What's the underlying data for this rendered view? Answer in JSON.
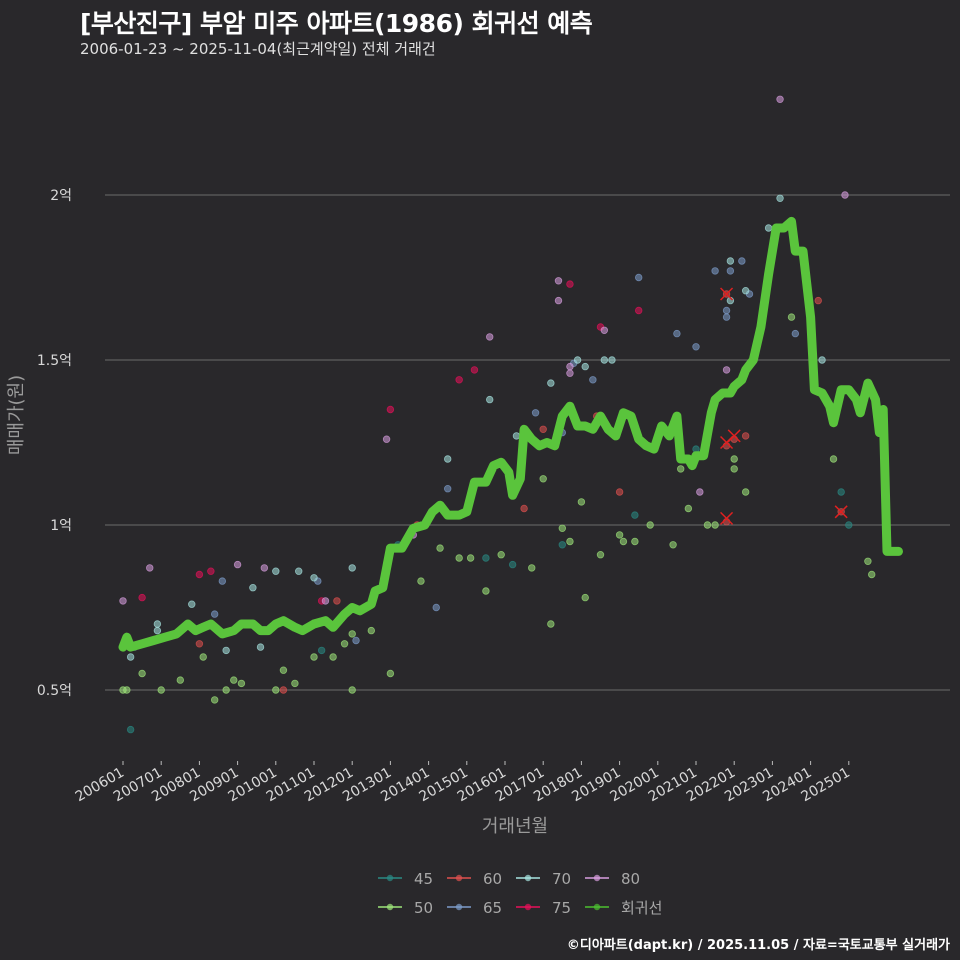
{
  "header": {
    "title": "[부산진구] 부암 미주 아파트(1986) 회귀선 예측",
    "subtitle": "2006-01-23 ~ 2025-11-04(최근계약일) 전체 거래건"
  },
  "footer": {
    "credit": "©디아파트(dapt.kr) / 2025.11.05 / 자료=국토교통부 실거래가"
  },
  "colors": {
    "background": "#29282b",
    "grid": "#6b6b6b",
    "regression": "#5ac43c",
    "outlier_x": "#e02020"
  },
  "chart_data": {
    "type": "scatter",
    "title": "[부산진구] 부암 미주 아파트(1986) 회귀선 예측",
    "subtitle": "2006-01-23 ~ 2025-11-04(최근계약일) 전체 거래건",
    "xlabel": "거래년월",
    "ylabel": "매매가(원)",
    "x_ticks": [
      "200601",
      "200701",
      "200801",
      "200901",
      "201001",
      "201101",
      "201201",
      "201301",
      "201401",
      "201501",
      "201601",
      "201701",
      "201801",
      "201901",
      "202001",
      "202101",
      "202201",
      "202301",
      "202401",
      "202501"
    ],
    "y_ticks": [
      {
        "value": 0.5,
        "label": "0.5억"
      },
      {
        "value": 1.0,
        "label": "1억"
      },
      {
        "value": 1.5,
        "label": "1.5억"
      },
      {
        "value": 2.0,
        "label": "2억"
      }
    ],
    "ylim": [
      0.27,
      2.55
    ],
    "y_unit": "억원",
    "grid": true,
    "legend_position": "bottom",
    "legend": [
      {
        "name": "45",
        "color": "#2a8a84"
      },
      {
        "name": "60",
        "color": "#e0504e"
      },
      {
        "name": "70",
        "color": "#a8e6e2"
      },
      {
        "name": "80",
        "color": "#d89ee0"
      },
      {
        "name": "50",
        "color": "#9ee67a"
      },
      {
        "name": "65",
        "color": "#7d9ccb"
      },
      {
        "name": "75",
        "color": "#e8105a"
      },
      {
        "name": "회귀선",
        "color": "#4cbf30"
      }
    ],
    "regression_line": {
      "name": "회귀선",
      "points": [
        [
          2006.0,
          0.63
        ],
        [
          2006.1,
          0.66
        ],
        [
          2006.2,
          0.63
        ],
        [
          2006.5,
          0.64
        ],
        [
          2006.8,
          0.65
        ],
        [
          2007.1,
          0.66
        ],
        [
          2007.4,
          0.67
        ],
        [
          2007.7,
          0.7
        ],
        [
          2007.9,
          0.68
        ],
        [
          2008.1,
          0.69
        ],
        [
          2008.3,
          0.7
        ],
        [
          2008.6,
          0.67
        ],
        [
          2008.9,
          0.68
        ],
        [
          2009.1,
          0.7
        ],
        [
          2009.4,
          0.7
        ],
        [
          2009.6,
          0.68
        ],
        [
          2009.8,
          0.68
        ],
        [
          2010.0,
          0.7
        ],
        [
          2010.2,
          0.71
        ],
        [
          2010.5,
          0.69
        ],
        [
          2010.7,
          0.68
        ],
        [
          2011.0,
          0.7
        ],
        [
          2011.3,
          0.71
        ],
        [
          2011.5,
          0.69
        ],
        [
          2011.8,
          0.73
        ],
        [
          2012.0,
          0.75
        ],
        [
          2012.2,
          0.74
        ],
        [
          2012.5,
          0.76
        ],
        [
          2012.6,
          0.8
        ],
        [
          2012.8,
          0.81
        ],
        [
          2013.0,
          0.93
        ],
        [
          2013.3,
          0.93
        ],
        [
          2013.6,
          0.99
        ],
        [
          2013.9,
          1.0
        ],
        [
          2014.1,
          1.04
        ],
        [
          2014.3,
          1.06
        ],
        [
          2014.5,
          1.03
        ],
        [
          2014.8,
          1.03
        ],
        [
          2015.0,
          1.04
        ],
        [
          2015.2,
          1.13
        ],
        [
          2015.5,
          1.13
        ],
        [
          2015.7,
          1.18
        ],
        [
          2015.9,
          1.19
        ],
        [
          2016.1,
          1.16
        ],
        [
          2016.2,
          1.09
        ],
        [
          2016.4,
          1.14
        ],
        [
          2016.5,
          1.29
        ],
        [
          2016.7,
          1.26
        ],
        [
          2016.9,
          1.24
        ],
        [
          2017.1,
          1.25
        ],
        [
          2017.3,
          1.24
        ],
        [
          2017.5,
          1.33
        ],
        [
          2017.7,
          1.36
        ],
        [
          2017.9,
          1.3
        ],
        [
          2018.1,
          1.3
        ],
        [
          2018.3,
          1.29
        ],
        [
          2018.5,
          1.33
        ],
        [
          2018.7,
          1.29
        ],
        [
          2018.9,
          1.27
        ],
        [
          2019.1,
          1.34
        ],
        [
          2019.3,
          1.33
        ],
        [
          2019.5,
          1.26
        ],
        [
          2019.7,
          1.24
        ],
        [
          2019.9,
          1.23
        ],
        [
          2020.1,
          1.3
        ],
        [
          2020.3,
          1.27
        ],
        [
          2020.5,
          1.33
        ],
        [
          2020.6,
          1.2
        ],
        [
          2020.8,
          1.2
        ],
        [
          2020.9,
          1.18
        ],
        [
          2021.0,
          1.21
        ],
        [
          2021.2,
          1.21
        ],
        [
          2021.4,
          1.34
        ],
        [
          2021.5,
          1.38
        ],
        [
          2021.7,
          1.4
        ],
        [
          2021.9,
          1.4
        ],
        [
          2022.0,
          1.42
        ],
        [
          2022.2,
          1.44
        ],
        [
          2022.3,
          1.47
        ],
        [
          2022.5,
          1.5
        ],
        [
          2022.7,
          1.6
        ],
        [
          2022.9,
          1.76
        ],
        [
          2023.1,
          1.9
        ],
        [
          2023.3,
          1.9
        ],
        [
          2023.5,
          1.92
        ],
        [
          2023.6,
          1.83
        ],
        [
          2023.8,
          1.83
        ],
        [
          2024.0,
          1.63
        ],
        [
          2024.1,
          1.41
        ],
        [
          2024.3,
          1.4
        ],
        [
          2024.5,
          1.36
        ],
        [
          2024.6,
          1.31
        ],
        [
          2024.8,
          1.41
        ],
        [
          2025.0,
          1.41
        ],
        [
          2025.2,
          1.38
        ],
        [
          2025.3,
          1.34
        ],
        [
          2025.5,
          1.43
        ],
        [
          2025.7,
          1.38
        ],
        [
          2025.8,
          1.28
        ],
        [
          2025.9,
          1.35
        ],
        [
          2026.0,
          0.92
        ],
        [
          2026.3,
          0.92
        ]
      ]
    },
    "series": [
      {
        "name": "45",
        "points": [
          [
            2006.2,
            0.38
          ],
          [
            2011.2,
            0.62
          ],
          [
            2013.2,
            0.94
          ],
          [
            2015.5,
            0.9
          ],
          [
            2016.2,
            0.88
          ],
          [
            2017.5,
            0.94
          ],
          [
            2019.4,
            1.03
          ],
          [
            2021.0,
            1.23
          ],
          [
            2024.8,
            1.1
          ],
          [
            2025.0,
            1.0
          ]
        ]
      },
      {
        "name": "50",
        "points": [
          [
            2006.0,
            0.5
          ],
          [
            2006.1,
            0.5
          ],
          [
            2006.5,
            0.55
          ],
          [
            2007.0,
            0.5
          ],
          [
            2007.5,
            0.53
          ],
          [
            2008.1,
            0.6
          ],
          [
            2008.4,
            0.47
          ],
          [
            2008.7,
            0.5
          ],
          [
            2008.9,
            0.53
          ],
          [
            2009.1,
            0.52
          ],
          [
            2010.0,
            0.5
          ],
          [
            2010.2,
            0.56
          ],
          [
            2010.5,
            0.52
          ],
          [
            2011.0,
            0.6
          ],
          [
            2011.5,
            0.6
          ],
          [
            2011.8,
            0.64
          ],
          [
            2012.0,
            0.67
          ],
          [
            2012.0,
            0.5
          ],
          [
            2012.5,
            0.68
          ],
          [
            2013.0,
            0.55
          ],
          [
            2013.8,
            0.83
          ],
          [
            2014.3,
            0.93
          ],
          [
            2014.8,
            0.9
          ],
          [
            2015.1,
            0.9
          ],
          [
            2015.5,
            0.8
          ],
          [
            2015.9,
            0.91
          ],
          [
            2016.7,
            0.87
          ],
          [
            2017.0,
            1.14
          ],
          [
            2017.2,
            0.7
          ],
          [
            2017.5,
            0.99
          ],
          [
            2017.7,
            0.95
          ],
          [
            2018.0,
            1.07
          ],
          [
            2018.1,
            0.78
          ],
          [
            2018.5,
            0.91
          ],
          [
            2019.0,
            0.97
          ],
          [
            2019.1,
            0.95
          ],
          [
            2019.4,
            0.95
          ],
          [
            2019.8,
            1.0
          ],
          [
            2020.4,
            0.94
          ],
          [
            2020.6,
            1.17
          ],
          [
            2020.8,
            1.05
          ],
          [
            2021.3,
            1.0
          ],
          [
            2021.5,
            1.0
          ],
          [
            2022.0,
            1.17
          ],
          [
            2022.0,
            1.2
          ],
          [
            2022.3,
            1.1
          ],
          [
            2023.5,
            1.63
          ],
          [
            2024.6,
            1.2
          ],
          [
            2025.5,
            0.89
          ],
          [
            2025.6,
            0.85
          ]
        ]
      },
      {
        "name": "60",
        "points": [
          [
            2008.0,
            0.64
          ],
          [
            2010.2,
            0.5
          ],
          [
            2011.6,
            0.77
          ],
          [
            2013.7,
            1.0
          ],
          [
            2016.5,
            1.05
          ],
          [
            2017.0,
            1.29
          ],
          [
            2018.4,
            1.33
          ],
          [
            2019.0,
            1.1
          ],
          [
            2021.8,
            1.01
          ],
          [
            2021.8,
            1.24
          ],
          [
            2022.0,
            1.26
          ],
          [
            2022.3,
            1.27
          ],
          [
            2021.8,
            1.7
          ],
          [
            2024.2,
            1.68
          ],
          [
            2024.8,
            1.04
          ]
        ]
      },
      {
        "name": "65",
        "points": [
          [
            2006.3,
            0.63
          ],
          [
            2008.4,
            0.73
          ],
          [
            2008.6,
            0.83
          ],
          [
            2011.1,
            0.83
          ],
          [
            2012.1,
            0.65
          ],
          [
            2014.2,
            0.75
          ],
          [
            2014.5,
            1.11
          ],
          [
            2016.8,
            1.34
          ],
          [
            2017.5,
            1.28
          ],
          [
            2017.8,
            1.49
          ],
          [
            2018.3,
            1.44
          ],
          [
            2019.5,
            1.75
          ],
          [
            2020.5,
            1.58
          ],
          [
            2021.0,
            1.54
          ],
          [
            2021.5,
            1.77
          ],
          [
            2021.8,
            1.65
          ],
          [
            2021.8,
            1.63
          ],
          [
            2021.9,
            1.77
          ],
          [
            2022.2,
            1.8
          ],
          [
            2022.4,
            1.7
          ],
          [
            2023.6,
            1.58
          ]
        ]
      },
      {
        "name": "70",
        "points": [
          [
            2006.2,
            0.6
          ],
          [
            2006.9,
            0.7
          ],
          [
            2006.9,
            0.68
          ],
          [
            2007.8,
            0.76
          ],
          [
            2008.7,
            0.62
          ],
          [
            2009.4,
            0.81
          ],
          [
            2009.6,
            0.63
          ],
          [
            2010.0,
            0.86
          ],
          [
            2010.6,
            0.86
          ],
          [
            2011.0,
            0.84
          ],
          [
            2012.0,
            0.87
          ],
          [
            2014.5,
            1.2
          ],
          [
            2015.6,
            1.38
          ],
          [
            2016.3,
            1.27
          ],
          [
            2017.2,
            1.43
          ],
          [
            2017.9,
            1.5
          ],
          [
            2018.1,
            1.48
          ],
          [
            2018.6,
            1.5
          ],
          [
            2018.8,
            1.5
          ],
          [
            2021.9,
            1.8
          ],
          [
            2021.9,
            1.68
          ],
          [
            2022.3,
            1.71
          ],
          [
            2022.9,
            1.9
          ],
          [
            2023.2,
            1.99
          ],
          [
            2024.3,
            1.5
          ]
        ]
      },
      {
        "name": "75",
        "points": [
          [
            2006.5,
            0.78
          ],
          [
            2008.0,
            0.85
          ],
          [
            2008.3,
            0.86
          ],
          [
            2011.2,
            0.77
          ],
          [
            2013.0,
            1.35
          ],
          [
            2014.8,
            1.44
          ],
          [
            2015.2,
            1.47
          ],
          [
            2017.7,
            1.73
          ],
          [
            2018.5,
            1.6
          ],
          [
            2019.5,
            1.65
          ]
        ]
      },
      {
        "name": "80",
        "points": [
          [
            2006.0,
            0.77
          ],
          [
            2006.7,
            0.87
          ],
          [
            2009.0,
            0.88
          ],
          [
            2009.7,
            0.87
          ],
          [
            2011.3,
            0.77
          ],
          [
            2012.9,
            1.26
          ],
          [
            2013.6,
            0.97
          ],
          [
            2015.6,
            1.57
          ],
          [
            2017.4,
            1.74
          ],
          [
            2017.4,
            1.68
          ],
          [
            2017.7,
            1.48
          ],
          [
            2017.7,
            1.46
          ],
          [
            2018.6,
            1.59
          ],
          [
            2021.1,
            1.1
          ],
          [
            2021.8,
            1.47
          ],
          [
            2023.2,
            2.29
          ],
          [
            2024.9,
            2.0
          ]
        ]
      }
    ],
    "outliers_marked_x": [
      [
        2021.8,
        1.7
      ],
      [
        2021.8,
        1.25
      ],
      [
        2022.0,
        1.27
      ],
      [
        2021.8,
        1.02
      ],
      [
        2024.8,
        1.04
      ]
    ]
  }
}
